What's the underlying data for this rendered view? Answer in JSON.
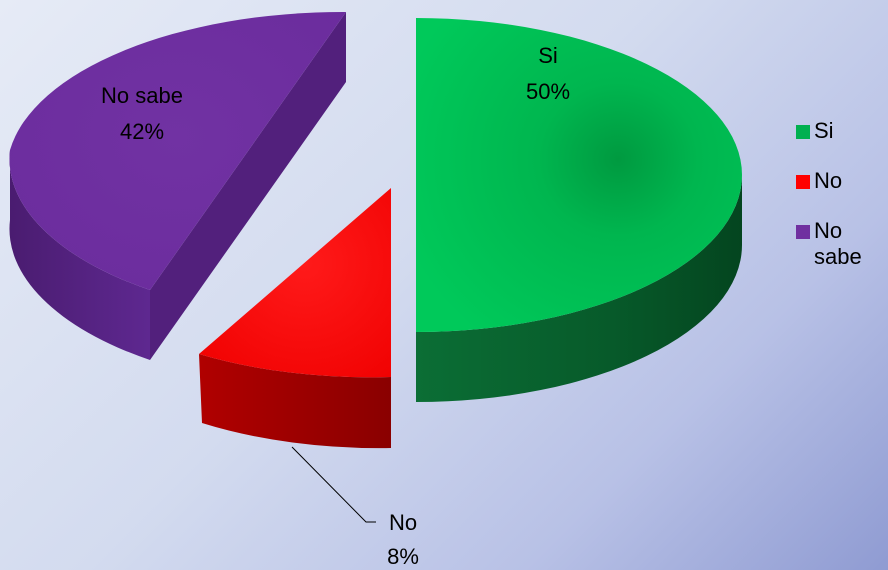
{
  "chart_data": {
    "type": "pie",
    "title": "",
    "categories": [
      "Si",
      "No",
      "No sabe"
    ],
    "values": [
      50,
      8,
      42
    ],
    "unit": "%",
    "data_labels": [
      {
        "name": "Si",
        "value": "50%"
      },
      {
        "name": "No",
        "value": "8%"
      },
      {
        "name": "No sabe",
        "value": "42%"
      }
    ],
    "colors": [
      "#00b050",
      "#ff0000",
      "#7030a0"
    ],
    "legend_placement": "right",
    "exploded": true,
    "three_d": true
  },
  "legend": {
    "items": [
      {
        "label": "Si",
        "color": "#00b050"
      },
      {
        "label": "No",
        "color": "#ff0000"
      },
      {
        "label": "No sabe",
        "color": "#7030a0"
      }
    ]
  }
}
